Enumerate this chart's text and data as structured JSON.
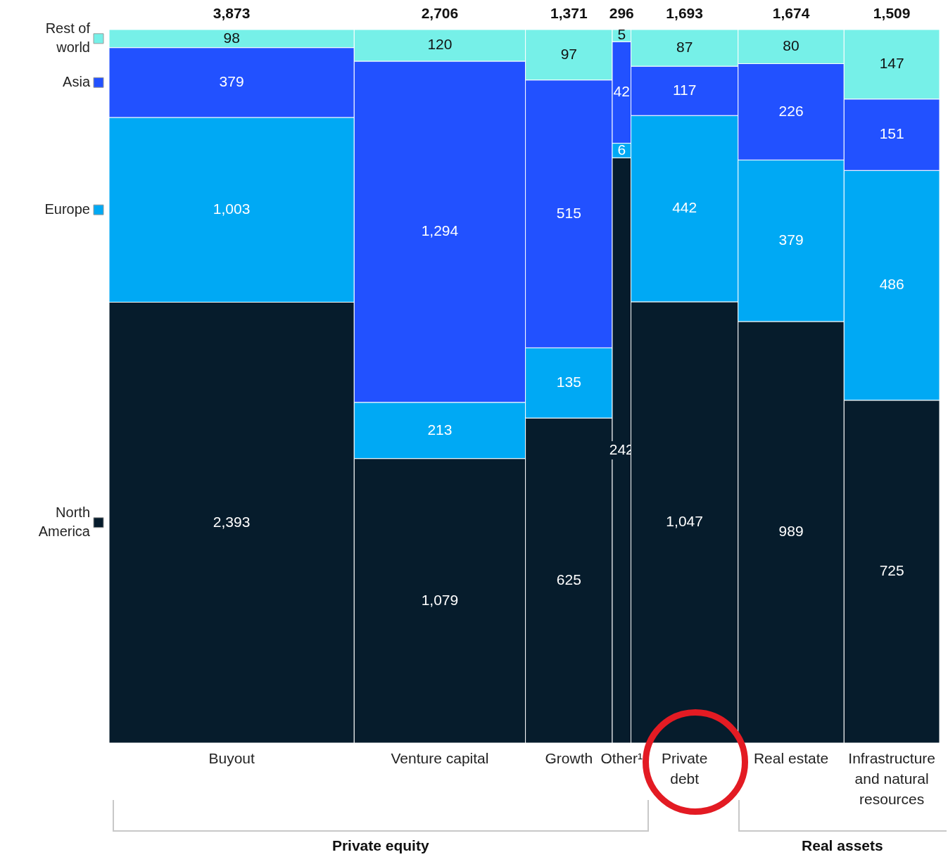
{
  "chart_data": {
    "type": "other",
    "categories": [
      "Buyout",
      "Venture capital",
      "Growth",
      "Other¹",
      "Private debt",
      "Real estate",
      "Infrastructure and natural resources"
    ],
    "series": [
      {
        "name": "North America",
        "color": "#061c2c",
        "values": [
          2393,
          1079,
          625,
          242,
          1047,
          989,
          725
        ],
        "value_labels": [
          "2,393",
          "1,079",
          "625",
          "242",
          "1,047",
          "989",
          "725"
        ]
      },
      {
        "name": "Europe",
        "color": "#00a9f4",
        "values": [
          1003,
          213,
          135,
          6,
          442,
          379,
          486
        ],
        "value_labels": [
          "1,003",
          "213",
          "135",
          "6",
          "442",
          "379",
          "486"
        ]
      },
      {
        "name": "Asia",
        "color": "#2251ff",
        "values": [
          379,
          1294,
          515,
          42,
          117,
          226,
          151
        ],
        "value_labels": [
          "379",
          "1,294",
          "515",
          "42",
          "117",
          "226",
          "151"
        ]
      },
      {
        "name": "Rest of world",
        "color": "#76f0e8",
        "values": [
          98,
          120,
          97,
          5,
          87,
          80,
          147
        ],
        "value_labels": [
          "98",
          "120",
          "97",
          "5",
          "87",
          "80",
          "147"
        ]
      }
    ],
    "totals": [
      "3,873",
      "2,706",
      "1,371",
      "296",
      "1,693",
      "1,674",
      "1,509"
    ],
    "annotations": [
      "Private equity",
      "Real assets"
    ],
    "legend": "left"
  }
}
